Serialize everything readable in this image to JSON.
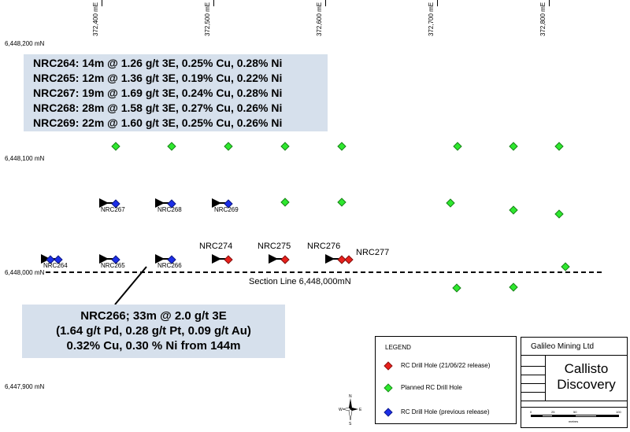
{
  "map": {
    "eastings": [
      "372,400 mE",
      "372,500 mE",
      "372,600 mE",
      "372,700 mE",
      "372,800 mE"
    ],
    "northings": [
      "6,448,200 mN",
      "6,448,100 mN",
      "6,448,000 mN",
      "6,447,900 mN"
    ],
    "section_line_label": "Section Line 6,448,000mN"
  },
  "summary_box": {
    "lines": [
      "NRC264: 14m @ 1.26 g/t 3E, 0.25% Cu, 0.28% Ni",
      "NRC265: 12m @ 1.36 g/t 3E, 0.19% Cu, 0.22% Ni",
      "NRC267: 19m @ 1.69 g/t 3E, 0.24% Cu, 0.28% Ni",
      "NRC268: 28m @ 1.58 g/t 3E, 0.27% Cu, 0.26% Ni",
      "NRC269: 22m @ 1.60 g/t 3E, 0.25% Cu, 0.26% Ni"
    ]
  },
  "callout": {
    "lines": [
      "NRC266; 33m @ 2.0 g/t 3E",
      "(1.64 g/t Pd, 0.28 g/t Pt, 0.09 g/t Au)",
      "0.32% Cu, 0.30 % Ni from 144m"
    ]
  },
  "hole_labels": {
    "nrc264": "NRC264",
    "nrc265": "NRC265",
    "nrc266": "NRC266",
    "nrc267": "NRC267",
    "nrc268": "NRC268",
    "nrc269": "NRC269",
    "nrc274": "NRC274",
    "nrc275": "NRC275",
    "nrc276": "NRC276",
    "nrc277": "NRC277"
  },
  "legend": {
    "title": "LEGEND",
    "items": [
      {
        "label": "RC Drill Hole (21/06/22 release)",
        "color": "#e8201c"
      },
      {
        "label": "Planned RC Drill Hole",
        "color": "#2ee82e"
      },
      {
        "label": "RC Drill Hole (previous release)",
        "color": "#1c2ee8"
      }
    ]
  },
  "title_block": {
    "company": "Galileo Mining Ltd",
    "title_line1": "Callisto",
    "title_line2": "Discovery",
    "scale_labels": [
      "0",
      "25",
      "50",
      "100"
    ],
    "scale_unit": "metres"
  },
  "compass": {
    "n": "N",
    "s": "S",
    "e": "E",
    "w": "W"
  },
  "colors": {
    "summary_bg": "#d6e0ec",
    "red": "#e8201c",
    "green": "#2ee82e",
    "blue": "#1c2ee8"
  }
}
